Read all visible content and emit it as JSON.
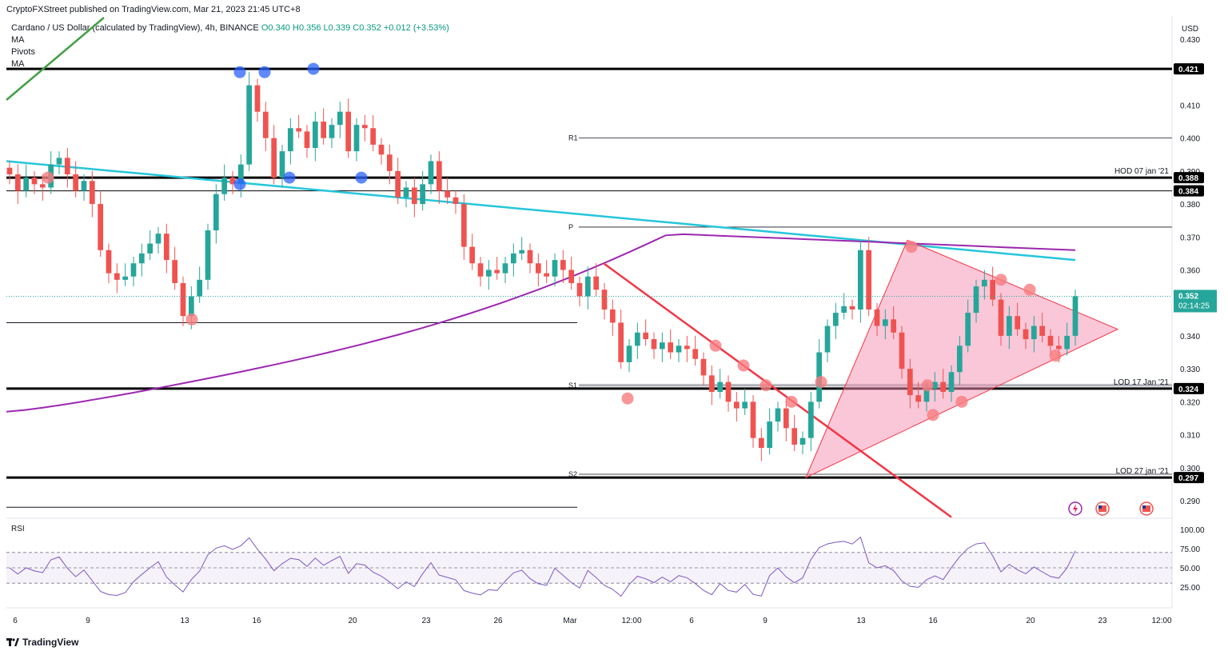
{
  "header": {
    "published": "CryptoFXStreet published on TradingView.com, Mar 21, 2023 21:45 UTC+8"
  },
  "legend": {
    "symbol": "Cardano / US Dollar (calculated by TradingView), 4h, BINANCE",
    "open": "O0.340",
    "high": "H0.356",
    "low": "L0.339",
    "close": "C0.352",
    "change": "+0.012 (+3.53%)",
    "indicators": [
      "MA",
      "Pivots",
      "MA"
    ]
  },
  "footer": {
    "brand": "TradingView"
  },
  "colors": {
    "up": "#26a69a",
    "down": "#ef5350",
    "ma_teal": "#26c6da",
    "ma_purple": "#9c27b0",
    "trendline_red": "#f23645",
    "triangle_fill": "#f48fb1",
    "pivot_blue": "#2962ff",
    "pivot_red": "#f77c80",
    "rsi": "#7e57c2"
  },
  "chart_data": {
    "type": "candlestick",
    "title": "Cardano / US Dollar",
    "timeframe": "4h",
    "currency": "USD",
    "ylim": [
      0.285,
      0.432
    ],
    "y_ticks": [
      "0.430",
      "0.410",
      "0.400",
      "0.390",
      "0.380",
      "0.370",
      "0.360",
      "0.340",
      "0.330",
      "0.320",
      "0.310",
      "0.300",
      "0.290"
    ],
    "x_ticks": [
      "6",
      "9",
      "13",
      "16",
      "20",
      "23",
      "26",
      "Mar",
      "12:00",
      "6",
      "9",
      "13",
      "16",
      "20",
      "23",
      "12:00"
    ],
    "price_badges": [
      {
        "label": "0.421",
        "value": 0.421,
        "style": "dark"
      },
      {
        "label": "0.388",
        "value": 0.388,
        "style": "dark"
      },
      {
        "label": "0.384",
        "value": 0.384,
        "style": "dark"
      },
      {
        "label": "0.324",
        "value": 0.324,
        "style": "dark"
      },
      {
        "label": "0.297",
        "value": 0.297,
        "style": "dark"
      },
      {
        "label": "0.352",
        "value": 0.352,
        "style": "current",
        "countdown": "02:14:25"
      }
    ],
    "level_labels": [
      {
        "text": "HOD 07 jan '21",
        "value": 0.388
      },
      {
        "text": "LOD 17 Jan '21",
        "value": 0.324
      },
      {
        "text": "LOD 27 jan '21",
        "value": 0.297
      }
    ],
    "pivots": [
      {
        "label": "R1",
        "value": 0.4
      },
      {
        "label": "P",
        "value": 0.373
      },
      {
        "label": "S1",
        "value": 0.325
      },
      {
        "label": "S2",
        "value": 0.298
      }
    ],
    "horizontal_lines": [
      0.421,
      0.388,
      0.384,
      0.324,
      0.297
    ],
    "thin_lines": [
      0.344,
      0.288
    ],
    "moving_averages": [
      {
        "name": "MA",
        "color": "teal",
        "start": 0.393,
        "end": 0.363
      },
      {
        "name": "MA",
        "color": "purple",
        "start": 0.316,
        "end": 0.366
      }
    ],
    "triangle": {
      "apex_low": 0.297,
      "top": 0.369,
      "tip": 0.342
    },
    "rsi": {
      "label": "RSI",
      "ticks": [
        "100.00",
        "75.00",
        "50.00",
        "25.00"
      ],
      "overbought": 70,
      "oversold": 30
    },
    "close_path": [
      0.389,
      0.384,
      0.388,
      0.386,
      0.385,
      0.392,
      0.394,
      0.389,
      0.384,
      0.387,
      0.38,
      0.366,
      0.359,
      0.357,
      0.358,
      0.362,
      0.365,
      0.368,
      0.371,
      0.363,
      0.356,
      0.346,
      0.352,
      0.357,
      0.372,
      0.383,
      0.388,
      0.386,
      0.392,
      0.416,
      0.408,
      0.4,
      0.388,
      0.396,
      0.403,
      0.402,
      0.397,
      0.405,
      0.4,
      0.404,
      0.408,
      0.396,
      0.404,
      0.403,
      0.398,
      0.395,
      0.39,
      0.382,
      0.385,
      0.38,
      0.386,
      0.393,
      0.384,
      0.382,
      0.38,
      0.367,
      0.362,
      0.358,
      0.36,
      0.359,
      0.362,
      0.365,
      0.366,
      0.362,
      0.359,
      0.358,
      0.363,
      0.36,
      0.356,
      0.352,
      0.358,
      0.354,
      0.348,
      0.344,
      0.332,
      0.337,
      0.341,
      0.339,
      0.336,
      0.338,
      0.335,
      0.337,
      0.336,
      0.333,
      0.328,
      0.323,
      0.326,
      0.32,
      0.318,
      0.32,
      0.309,
      0.306,
      0.314,
      0.318,
      0.312,
      0.307,
      0.309,
      0.32,
      0.335,
      0.343,
      0.347,
      0.349,
      0.348,
      0.366,
      0.348,
      0.343,
      0.345,
      0.341,
      0.33,
      0.322,
      0.32,
      0.324,
      0.326,
      0.323,
      0.329,
      0.337,
      0.347,
      0.355,
      0.357,
      0.351,
      0.34,
      0.346,
      0.342,
      0.339,
      0.343,
      0.34,
      0.337,
      0.336,
      0.34,
      0.352
    ]
  }
}
